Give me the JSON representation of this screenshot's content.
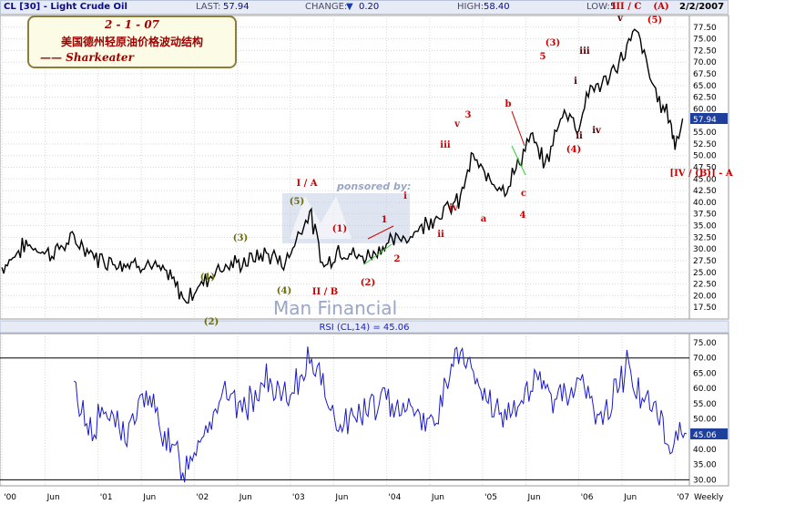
{
  "header": {
    "symbol": "CL [30] - Light Crude Oil",
    "last_label": "LAST:",
    "last_value": "57.94",
    "change_label": "CHANGE:",
    "change_arrow": "▼",
    "change_value": "0.20",
    "high_label": "HIGH:",
    "high_value": "58.40",
    "low_label": "LOW:",
    "low_value": "5",
    "date": "2/2/2007"
  },
  "legend": {
    "line1": "2 - 1 - 07",
    "line2": "美国德州轻原油价格波动结构",
    "line3": "—— Sharkeater"
  },
  "colors": {
    "price_line": "#000000",
    "rsi_line": "#1a1acc",
    "grid": "#d8d8d8",
    "wave_red": "#cc0000",
    "wave_olive": "#6b6b00",
    "wave_dark": "#550000",
    "panel_bg": "#ffffff",
    "axis_box_bg": "#c0c0c0"
  },
  "chart_data": [
    {
      "type": "line",
      "title": "CL [30] - Light Crude Oil",
      "ylim": [
        15,
        80
      ],
      "yticks": [
        "77.50",
        "75.00",
        "72.50",
        "70.00",
        "67.50",
        "65.00",
        "62.50",
        "60.00",
        "57.94",
        "55.00",
        "52.50",
        "50.00",
        "47.50",
        "45.00",
        "42.50",
        "40.00",
        "37.50",
        "35.00",
        "32.50",
        "30.00",
        "27.50",
        "25.00",
        "22.50",
        "20.00",
        "17.50"
      ],
      "last_value_label": "57.94",
      "x": [
        2000.0,
        2000.25,
        2000.5,
        2000.75,
        2001.0,
        2001.25,
        2001.5,
        2001.75,
        2001.9,
        2002.0,
        2002.25,
        2002.5,
        2002.75,
        2002.95,
        2003.1,
        2003.2,
        2003.35,
        2003.5,
        2003.75,
        2004.0,
        2004.25,
        2004.5,
        2004.75,
        2004.9,
        2005.0,
        2005.25,
        2005.5,
        2005.65,
        2005.85,
        2006.0,
        2006.1,
        2006.3,
        2006.5,
        2006.6,
        2006.8,
        2006.95,
        2007.0,
        2007.08
      ],
      "values": [
        26,
        31,
        29,
        32,
        28,
        27,
        27,
        24,
        19,
        21,
        26,
        27,
        29,
        27,
        34,
        38,
        26,
        30,
        28,
        31,
        33,
        37,
        40,
        50,
        46,
        43,
        54,
        48,
        60,
        56,
        64,
        66,
        73,
        77,
        63,
        58,
        52,
        57.94
      ],
      "waves": [
        "(1)",
        "(2)",
        "(3)",
        "(4)",
        "(5)",
        "I / A",
        "II / B",
        "(1)",
        "(2)",
        "1",
        "2",
        "i",
        "ii",
        "iii",
        "iv",
        "v",
        "3",
        "a",
        "b",
        "c",
        "4",
        "(3)",
        "5",
        "(4)",
        "i",
        "ii",
        "iii",
        "iv",
        "v",
        "III / C",
        "(A)",
        "(5)",
        "[IV / (B)] - A"
      ],
      "watermark": [
        "ponsored by:",
        "Man Financial"
      ]
    },
    {
      "type": "line",
      "title": "RSI (CL,14) = 45.06",
      "ylim": [
        28,
        78
      ],
      "yticks": [
        "75.00",
        "70.00",
        "65.00",
        "60.00",
        "55.00",
        "50.00",
        "45.06",
        "40.00",
        "35.00",
        "30.00"
      ],
      "last_value_label": "45.06",
      "reference_lines": [
        70,
        30
      ],
      "x": [
        2000.75,
        2000.9,
        2001.1,
        2001.3,
        2001.5,
        2001.75,
        2001.9,
        2002.1,
        2002.3,
        2002.5,
        2002.75,
        2003.0,
        2003.2,
        2003.3,
        2003.5,
        2003.75,
        2004.0,
        2004.25,
        2004.5,
        2004.6,
        2004.75,
        2005.0,
        2005.25,
        2005.5,
        2005.75,
        2006.0,
        2006.25,
        2006.5,
        2006.6,
        2006.8,
        2006.95,
        2007.05,
        2007.12
      ],
      "values": [
        60,
        47,
        52,
        45,
        58,
        41,
        34,
        47,
        58,
        53,
        62,
        55,
        72,
        63,
        48,
        52,
        56,
        54,
        48,
        60,
        72,
        58,
        48,
        62,
        57,
        62,
        49,
        68,
        60,
        52,
        40,
        47,
        45.06
      ]
    }
  ],
  "x_axis": {
    "labels": [
      "'00",
      "Jun",
      "'01",
      "Jun",
      "'02",
      "Jun",
      "'03",
      "Jun",
      "'04",
      "Jun",
      "'05",
      "Jun",
      "'06",
      "Jun",
      "'07"
    ],
    "positions": [
      2000.0,
      2000.45,
      2001.0,
      2001.45,
      2002.0,
      2002.45,
      2003.0,
      2003.45,
      2004.0,
      2004.45,
      2005.0,
      2005.45,
      2006.0,
      2006.45,
      2007.0
    ],
    "frequency": "Weekly"
  }
}
